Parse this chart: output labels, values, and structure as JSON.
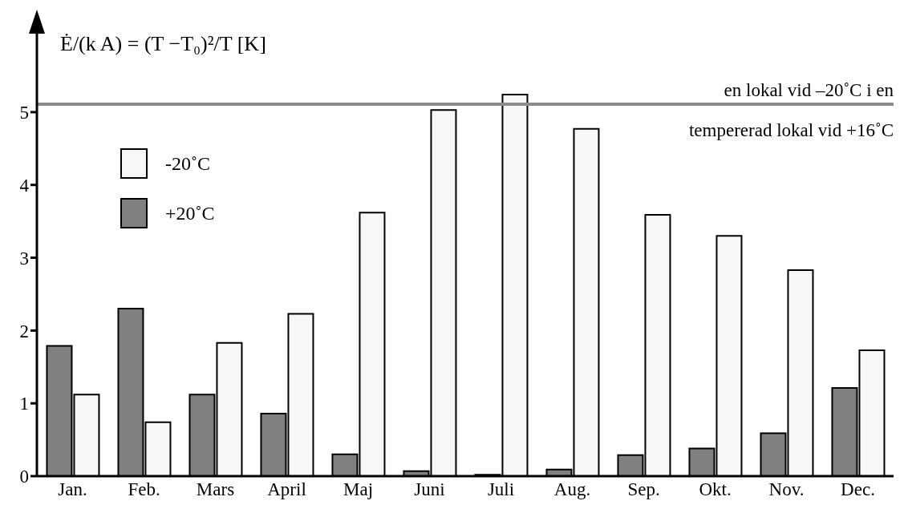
{
  "chart_data": {
    "type": "bar",
    "ylabel": "Ė/(k A) = (T −T₀)²/T  [K]",
    "categories": [
      "Jan.",
      "Feb.",
      "Mars",
      "April",
      "Maj",
      "Juni",
      "Juli",
      "Aug.",
      "Sep.",
      "Okt.",
      "Nov.",
      "Dec."
    ],
    "series": [
      {
        "name": "+20˚C",
        "color": "#808080",
        "values": [
          1.79,
          2.3,
          1.12,
          0.86,
          0.3,
          0.07,
          0.02,
          0.09,
          0.29,
          0.38,
          0.59,
          1.21
        ]
      },
      {
        "name": "-20˚C",
        "color": "#f7f7f7",
        "values": [
          1.12,
          0.74,
          1.83,
          2.23,
          3.62,
          5.03,
          5.24,
          4.77,
          3.59,
          3.3,
          2.83,
          1.73
        ]
      }
    ],
    "ylim": [
      0,
      6.1
    ],
    "yticks": [
      0,
      1,
      2,
      3,
      4,
      5
    ],
    "grid": false,
    "legend": "top left",
    "ref_lines": [
      {
        "axis": "y",
        "value": 5.11,
        "color": "#8c8c8c"
      }
    ],
    "annotations": [
      "en lokal vid –20˚C i en",
      "tempererad lokal vid +16˚C"
    ]
  }
}
